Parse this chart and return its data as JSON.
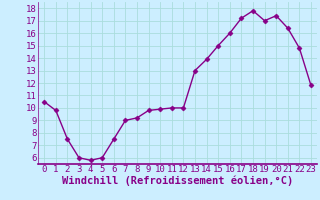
{
  "x": [
    0,
    1,
    2,
    3,
    4,
    5,
    6,
    7,
    8,
    9,
    10,
    11,
    12,
    13,
    14,
    15,
    16,
    17,
    18,
    19,
    20,
    21,
    22,
    23
  ],
  "y": [
    10.5,
    9.8,
    7.5,
    6.0,
    5.8,
    6.0,
    7.5,
    9.0,
    9.2,
    9.8,
    9.9,
    10.0,
    10.0,
    13.0,
    13.9,
    15.0,
    16.0,
    17.2,
    17.8,
    17.0,
    17.4,
    16.4,
    14.8,
    11.8
  ],
  "xlim": [
    -0.5,
    23.5
  ],
  "ylim": [
    5.5,
    18.5
  ],
  "yticks": [
    6,
    7,
    8,
    9,
    10,
    11,
    12,
    13,
    14,
    15,
    16,
    17,
    18
  ],
  "xticks": [
    0,
    1,
    2,
    3,
    4,
    5,
    6,
    7,
    8,
    9,
    10,
    11,
    12,
    13,
    14,
    15,
    16,
    17,
    18,
    19,
    20,
    21,
    22,
    23
  ],
  "xlabel": "Windchill (Refroidissement éolien,°C)",
  "line_color": "#880088",
  "marker": "D",
  "marker_size": 2.5,
  "bg_color": "#cceeff",
  "grid_color": "#aadddd",
  "axis_color": "#880088",
  "tick_fontsize": 6.5,
  "xlabel_fontsize": 7.5,
  "linewidth": 1.0
}
